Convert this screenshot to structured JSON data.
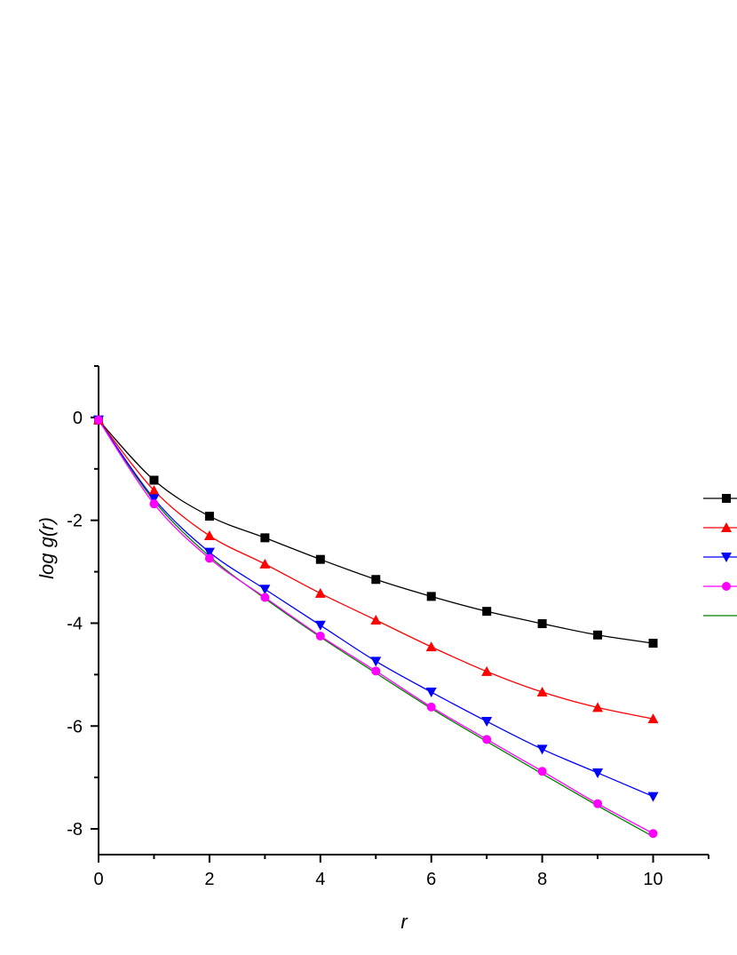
{
  "chart_data": {
    "type": "line",
    "title": "",
    "xlabel": "r",
    "ylabel": "log g(r)",
    "xlim": [
      0,
      11
    ],
    "ylim": [
      -8.5,
      1
    ],
    "xticks": [
      0,
      2,
      4,
      6,
      8,
      10
    ],
    "yticks": [
      0,
      -2,
      -4,
      -6,
      -8
    ],
    "grid": false,
    "legend_position": "right",
    "x": [
      0,
      1,
      2,
      3,
      4,
      5,
      6,
      7,
      8,
      9,
      10
    ],
    "series": [
      {
        "color": "#000000",
        "marker": "square",
        "values": [
          -0.05,
          -1.22,
          -1.92,
          -2.34,
          -2.76,
          -3.15,
          -3.48,
          -3.77,
          -4.01,
          -4.23,
          -4.39
        ]
      },
      {
        "color": "#ff0000",
        "marker": "triangle-up",
        "values": [
          -0.05,
          -1.42,
          -2.3,
          -2.85,
          -3.42,
          -3.94,
          -4.46,
          -4.94,
          -5.34,
          -5.64,
          -5.86
        ]
      },
      {
        "color": "#0000ff",
        "marker": "triangle-down",
        "values": [
          -0.05,
          -1.58,
          -2.62,
          -3.34,
          -4.04,
          -4.74,
          -5.34,
          -5.91,
          -6.45,
          -6.91,
          -7.37
        ]
      },
      {
        "color": "#ff00ff",
        "marker": "circle",
        "values": [
          -0.05,
          -1.68,
          -2.74,
          -3.5,
          -4.25,
          -4.93,
          -5.63,
          -6.26,
          -6.88,
          -7.51,
          -8.09
        ]
      },
      {
        "color": "#008000",
        "marker": "none",
        "values": [
          -0.05,
          -1.62,
          -2.7,
          -3.52,
          -4.27,
          -4.97,
          -5.66,
          -6.3,
          -6.93,
          -7.55,
          -8.15
        ]
      }
    ]
  }
}
